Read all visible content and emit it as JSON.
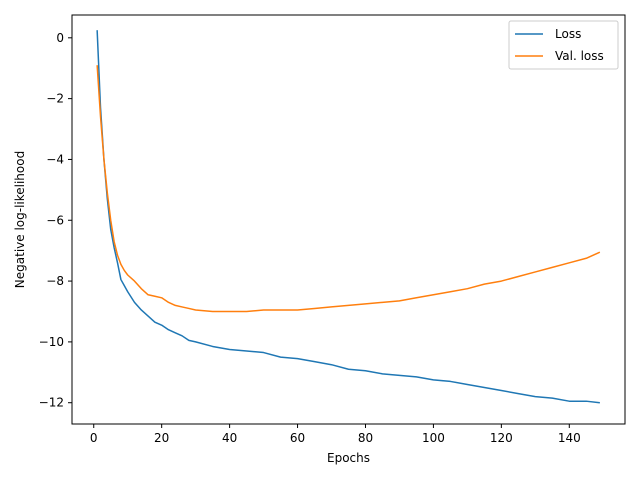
{
  "chart_data": {
    "type": "line",
    "title": "",
    "xlabel": "Epochs",
    "ylabel": "Negative log-likelihood",
    "xlim": [
      -6.4,
      156.4
    ],
    "ylim": [
      -12.7,
      0.75
    ],
    "xticks": [
      0,
      20,
      40,
      60,
      80,
      100,
      120,
      140
    ],
    "yticks": [
      0,
      -2,
      -4,
      -6,
      -8,
      -10,
      -12
    ],
    "grid": false,
    "legend_position": "top-right",
    "series": [
      {
        "name": "Loss",
        "color": "#1f77b4",
        "x": [
          1,
          2,
          3,
          4,
          5,
          6,
          7,
          8,
          9,
          10,
          12,
          14,
          16,
          18,
          20,
          22,
          24,
          26,
          28,
          30,
          35,
          40,
          45,
          50,
          55,
          60,
          65,
          70,
          75,
          80,
          85,
          90,
          95,
          100,
          105,
          110,
          115,
          120,
          125,
          130,
          135,
          140,
          145,
          149
        ],
        "y": [
          0.25,
          -2.3,
          -4.0,
          -5.3,
          -6.3,
          -6.9,
          -7.4,
          -7.95,
          -8.15,
          -8.35,
          -8.7,
          -8.95,
          -9.15,
          -9.35,
          -9.45,
          -9.6,
          -9.7,
          -9.8,
          -9.95,
          -10.0,
          -10.15,
          -10.25,
          -10.3,
          -10.35,
          -10.5,
          -10.55,
          -10.65,
          -10.75,
          -10.9,
          -10.95,
          -11.05,
          -11.1,
          -11.15,
          -11.25,
          -11.3,
          -11.4,
          -11.5,
          -11.6,
          -11.7,
          -11.8,
          -11.85,
          -11.95,
          -11.95,
          -12.0
        ]
      },
      {
        "name": "Val. loss",
        "color": "#ff7f0e",
        "x": [
          1,
          2,
          3,
          4,
          5,
          6,
          7,
          8,
          9,
          10,
          12,
          14,
          16,
          18,
          20,
          22,
          24,
          26,
          28,
          30,
          35,
          40,
          45,
          50,
          55,
          60,
          65,
          70,
          75,
          80,
          85,
          90,
          95,
          100,
          105,
          110,
          115,
          120,
          125,
          130,
          135,
          140,
          145,
          149
        ],
        "y": [
          -0.9,
          -2.6,
          -4.0,
          -5.1,
          -6.0,
          -6.7,
          -7.15,
          -7.45,
          -7.65,
          -7.8,
          -8.0,
          -8.25,
          -8.45,
          -8.5,
          -8.55,
          -8.7,
          -8.8,
          -8.85,
          -8.9,
          -8.95,
          -9.0,
          -9.0,
          -9.0,
          -8.95,
          -8.95,
          -8.95,
          -8.9,
          -8.85,
          -8.8,
          -8.75,
          -8.7,
          -8.65,
          -8.55,
          -8.45,
          -8.35,
          -8.25,
          -8.1,
          -8.0,
          -7.85,
          -7.7,
          -7.55,
          -7.4,
          -7.25,
          -7.05
        ]
      }
    ]
  }
}
